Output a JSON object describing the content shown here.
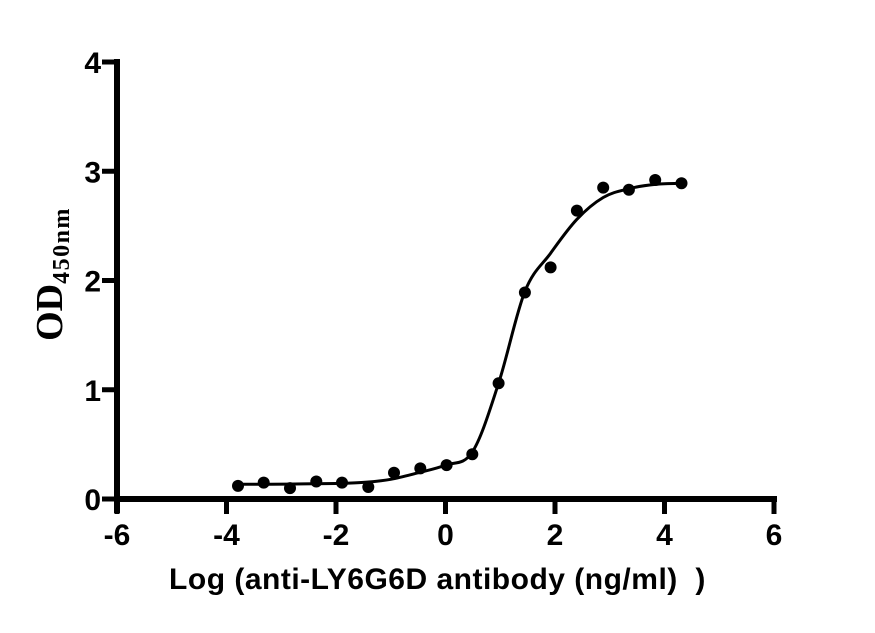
{
  "figure": {
    "background_color": "#ffffff",
    "axis_color": "#000000"
  },
  "chart_data": {
    "type": "scatter",
    "title": "",
    "x_title": "Log (anti-LY6G6D antibody (ng/ml)  )",
    "y_title_main": "OD",
    "y_title_sub": "450nm",
    "xlim": [
      -6,
      6
    ],
    "ylim": [
      0,
      4
    ],
    "x_ticks": [
      -6,
      -4,
      -2,
      0,
      2,
      4,
      6
    ],
    "x_tick_labels": [
      "-6",
      "-4",
      "-2",
      "0",
      "2",
      "4",
      "6"
    ],
    "y_ticks": [
      0,
      1,
      2,
      3,
      4
    ],
    "y_tick_labels": [
      "0",
      "1",
      "2",
      "3",
      "4"
    ],
    "grid": false,
    "legend": "none",
    "marker_color": "#000000",
    "curve_color": "#000000",
    "points": [
      [
        -3.79,
        0.12
      ],
      [
        -3.32,
        0.15
      ],
      [
        -2.84,
        0.1
      ],
      [
        -2.36,
        0.16
      ],
      [
        -1.89,
        0.15
      ],
      [
        -1.41,
        0.11
      ],
      [
        -0.94,
        0.24
      ],
      [
        -0.46,
        0.28
      ],
      [
        0.02,
        0.31
      ],
      [
        0.49,
        0.41
      ],
      [
        0.97,
        1.06
      ],
      [
        1.45,
        1.89
      ],
      [
        1.92,
        2.12
      ],
      [
        2.4,
        2.64
      ],
      [
        2.88,
        2.85
      ],
      [
        3.35,
        2.83
      ],
      [
        3.83,
        2.92
      ],
      [
        4.31,
        2.89
      ]
    ],
    "fit_curve_anchors": [
      [
        -3.79,
        0.135
      ],
      [
        -3.2,
        0.135
      ],
      [
        -2.6,
        0.138
      ],
      [
        -2.0,
        0.142
      ],
      [
        -1.5,
        0.152
      ],
      [
        -1.0,
        0.18
      ],
      [
        -0.5,
        0.24
      ],
      [
        0.0,
        0.31
      ],
      [
        0.49,
        0.43
      ],
      [
        0.97,
        1.06
      ],
      [
        1.45,
        1.9
      ],
      [
        1.92,
        2.25
      ],
      [
        2.4,
        2.56
      ],
      [
        2.88,
        2.76
      ],
      [
        3.35,
        2.84
      ],
      [
        3.83,
        2.88
      ],
      [
        4.31,
        2.89
      ]
    ]
  }
}
